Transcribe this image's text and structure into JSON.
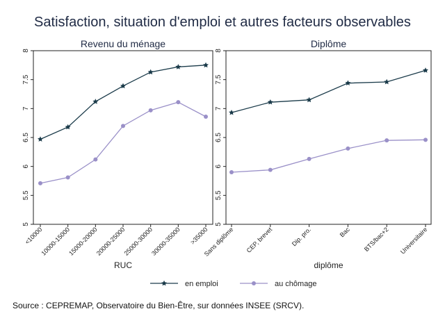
{
  "title": "Satisfaction, situation d'emploi et autres facteurs observables",
  "source": "Source : CEPREMAP, Observatoire du Bien-Être, sur données INSEE (SRCV).",
  "chart_data": [
    {
      "type": "line",
      "title": "Revenu du ménage",
      "xlabel": "RUC",
      "ylabel": "",
      "categories": [
        "<10000",
        "10000-15000",
        "15000-20000",
        "20000-25000",
        "25000-30000",
        "30000-35000",
        ">35000"
      ],
      "ylim": [
        5,
        8
      ],
      "yticks": [
        5,
        5.5,
        6,
        6.5,
        7,
        7.5,
        8
      ],
      "series": [
        {
          "name": "en emploi",
          "color": "#1b3b4a",
          "marker": "star",
          "values": [
            6.47,
            6.68,
            7.12,
            7.39,
            7.63,
            7.72,
            7.75
          ]
        },
        {
          "name": "au chômage",
          "color": "#9a90c8",
          "marker": "circle",
          "values": [
            5.71,
            5.81,
            6.12,
            6.7,
            6.97,
            7.11,
            6.86
          ]
        }
      ]
    },
    {
      "type": "line",
      "title": "Diplôme",
      "xlabel": "diplôme",
      "ylabel": "",
      "categories": [
        "Sans diplôme",
        "CEP, brevet",
        "Dip. pro.",
        "Bac",
        "BTS/bac+2",
        "Universitaire"
      ],
      "ylim": [
        5,
        8
      ],
      "yticks": [
        5,
        5.5,
        6,
        6.5,
        7,
        7.5,
        8
      ],
      "series": [
        {
          "name": "en emploi",
          "color": "#1b3b4a",
          "marker": "star",
          "values": [
            6.93,
            7.11,
            7.15,
            7.44,
            7.46,
            7.66
          ]
        },
        {
          "name": "au chômage",
          "color": "#9a90c8",
          "marker": "circle",
          "values": [
            5.9,
            5.94,
            6.13,
            6.31,
            6.45,
            6.46
          ]
        }
      ]
    }
  ],
  "legend": {
    "placement": "bottom",
    "items": [
      {
        "label": "en emploi",
        "color": "#1b3b4a",
        "marker": "star"
      },
      {
        "label": "au chômage",
        "color": "#9a90c8",
        "marker": "circle"
      }
    ]
  }
}
